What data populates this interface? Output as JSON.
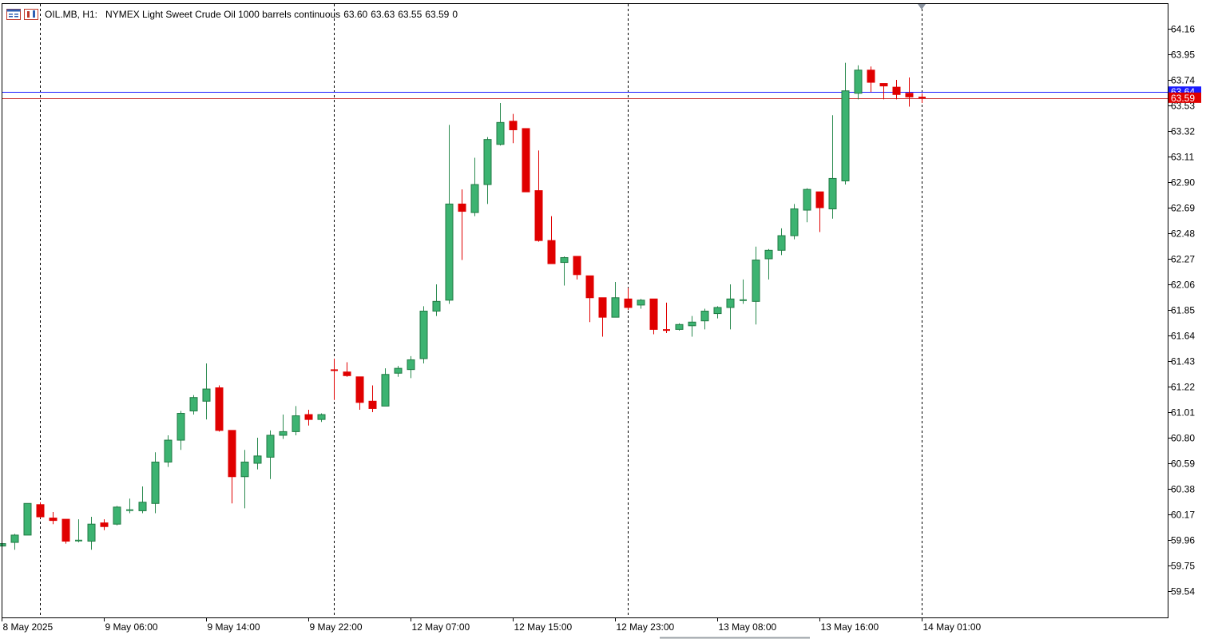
{
  "header": {
    "symbol": "OIL.MB, H1:",
    "description": "NYMEX Light Sweet Crude Oil 1000 barrels continuous",
    "open": "63.60",
    "high": "63.63",
    "low": "63.55",
    "close": "63.59",
    "volume": "0"
  },
  "colors": {
    "bull": "#2e9e5b",
    "bull_fill": "#3cb371",
    "bear": "#e00000",
    "bid_line": "#cc3333",
    "ask_line": "#1a1aff",
    "grid": "#000000",
    "axis": "#000000"
  },
  "price_tags": {
    "bid": "63.59",
    "ask": "63.64"
  },
  "chart_data": {
    "type": "candlestick",
    "timeframe": "H1",
    "ylim": [
      59.4,
      64.28
    ],
    "y_ticks": [
      "64.16",
      "63.95",
      "63.74",
      "63.53",
      "63.32",
      "63.11",
      "62.90",
      "62.69",
      "62.48",
      "62.27",
      "62.06",
      "61.85",
      "61.64",
      "61.43",
      "61.22",
      "61.01",
      "60.80",
      "60.59",
      "60.38",
      "60.17",
      "59.96",
      "59.75",
      "59.54"
    ],
    "x_ticks": [
      "8 May 2025",
      "9 May 06:00",
      "9 May 14:00",
      "9 May 22:00",
      "12 May 07:00",
      "12 May 15:00",
      "12 May 23:00",
      "13 May 08:00",
      "13 May 16:00",
      "14 May 01:00"
    ],
    "x_tick_bars": [
      0,
      8,
      16,
      24,
      32,
      40,
      48,
      56,
      64,
      72
    ],
    "session_separator_bars": [
      3,
      26,
      49,
      72
    ],
    "bid": 63.59,
    "ask": 63.64,
    "candles": [
      {
        "o": 59.91,
        "h": 59.94,
        "l": 59.89,
        "c": 59.93
      },
      {
        "o": 59.94,
        "h": 60.01,
        "l": 59.88,
        "c": 60.0
      },
      {
        "o": 60.0,
        "h": 60.26,
        "l": 60.0,
        "c": 60.26
      },
      {
        "o": 60.25,
        "h": 60.27,
        "l": 60.14,
        "c": 60.15
      },
      {
        "o": 60.14,
        "h": 60.19,
        "l": 60.09,
        "c": 60.12
      },
      {
        "o": 60.13,
        "h": 60.13,
        "l": 59.93,
        "c": 59.95
      },
      {
        "o": 59.95,
        "h": 60.13,
        "l": 59.94,
        "c": 59.96
      },
      {
        "o": 59.95,
        "h": 60.15,
        "l": 59.88,
        "c": 60.09
      },
      {
        "o": 60.1,
        "h": 60.13,
        "l": 60.04,
        "c": 60.07
      },
      {
        "o": 60.09,
        "h": 60.24,
        "l": 60.08,
        "c": 60.23
      },
      {
        "o": 60.2,
        "h": 60.3,
        "l": 60.18,
        "c": 60.21
      },
      {
        "o": 60.2,
        "h": 60.4,
        "l": 60.18,
        "c": 60.27
      },
      {
        "o": 60.26,
        "h": 60.68,
        "l": 60.18,
        "c": 60.6
      },
      {
        "o": 60.6,
        "h": 60.82,
        "l": 60.56,
        "c": 60.78
      },
      {
        "o": 60.78,
        "h": 61.02,
        "l": 60.7,
        "c": 61.0
      },
      {
        "o": 61.02,
        "h": 61.15,
        "l": 60.99,
        "c": 61.13
      },
      {
        "o": 61.1,
        "h": 61.41,
        "l": 60.95,
        "c": 61.2
      },
      {
        "o": 61.21,
        "h": 61.23,
        "l": 60.85,
        "c": 60.86
      },
      {
        "o": 60.86,
        "h": 60.86,
        "l": 60.26,
        "c": 60.48
      },
      {
        "o": 60.48,
        "h": 60.7,
        "l": 60.22,
        "c": 60.6
      },
      {
        "o": 60.59,
        "h": 60.8,
        "l": 60.54,
        "c": 60.65
      },
      {
        "o": 60.64,
        "h": 60.86,
        "l": 60.46,
        "c": 60.82
      },
      {
        "o": 60.82,
        "h": 60.99,
        "l": 60.79,
        "c": 60.85
      },
      {
        "o": 60.85,
        "h": 61.06,
        "l": 60.82,
        "c": 60.98
      },
      {
        "o": 60.99,
        "h": 61.03,
        "l": 60.9,
        "c": 60.95
      },
      {
        "o": 60.95,
        "h": 61.0,
        "l": 60.93,
        "c": 60.99
      },
      {
        "o": 61.36,
        "h": 61.45,
        "l": 61.11,
        "c": 61.35
      },
      {
        "o": 61.34,
        "h": 61.42,
        "l": 61.3,
        "c": 61.31
      },
      {
        "o": 61.3,
        "h": 61.3,
        "l": 61.03,
        "c": 61.09
      },
      {
        "o": 61.1,
        "h": 61.23,
        "l": 61.01,
        "c": 61.04
      },
      {
        "o": 61.06,
        "h": 61.37,
        "l": 61.06,
        "c": 61.32
      },
      {
        "o": 61.33,
        "h": 61.39,
        "l": 61.3,
        "c": 61.37
      },
      {
        "o": 61.36,
        "h": 61.47,
        "l": 61.29,
        "c": 61.44
      },
      {
        "o": 61.45,
        "h": 61.88,
        "l": 61.41,
        "c": 61.84
      },
      {
        "o": 61.84,
        "h": 62.06,
        "l": 61.8,
        "c": 61.92
      },
      {
        "o": 61.93,
        "h": 63.37,
        "l": 61.9,
        "c": 62.72
      },
      {
        "o": 62.72,
        "h": 62.84,
        "l": 62.26,
        "c": 62.66
      },
      {
        "o": 62.65,
        "h": 63.1,
        "l": 62.62,
        "c": 62.88
      },
      {
        "o": 62.88,
        "h": 63.27,
        "l": 62.72,
        "c": 63.25
      },
      {
        "o": 63.21,
        "h": 63.55,
        "l": 63.2,
        "c": 63.39
      },
      {
        "o": 63.4,
        "h": 63.46,
        "l": 63.22,
        "c": 63.33
      },
      {
        "o": 63.34,
        "h": 63.34,
        "l": 62.82,
        "c": 62.82
      },
      {
        "o": 62.83,
        "h": 63.16,
        "l": 62.41,
        "c": 62.42
      },
      {
        "o": 62.42,
        "h": 62.62,
        "l": 62.23,
        "c": 62.23
      },
      {
        "o": 62.24,
        "h": 62.29,
        "l": 62.05,
        "c": 62.28
      },
      {
        "o": 62.29,
        "h": 62.29,
        "l": 62.1,
        "c": 62.14
      },
      {
        "o": 62.13,
        "h": 62.13,
        "l": 61.75,
        "c": 61.95
      },
      {
        "o": 61.95,
        "h": 61.95,
        "l": 61.63,
        "c": 61.79
      },
      {
        "o": 61.79,
        "h": 62.08,
        "l": 61.79,
        "c": 61.95
      },
      {
        "o": 61.94,
        "h": 62.03,
        "l": 61.85,
        "c": 61.87
      },
      {
        "o": 61.89,
        "h": 61.94,
        "l": 61.86,
        "c": 61.93
      },
      {
        "o": 61.94,
        "h": 61.94,
        "l": 61.65,
        "c": 61.69
      },
      {
        "o": 61.69,
        "h": 61.91,
        "l": 61.66,
        "c": 61.68
      },
      {
        "o": 61.69,
        "h": 61.74,
        "l": 61.68,
        "c": 61.73
      },
      {
        "o": 61.72,
        "h": 61.8,
        "l": 61.63,
        "c": 61.75
      },
      {
        "o": 61.76,
        "h": 61.86,
        "l": 61.69,
        "c": 61.84
      },
      {
        "o": 61.82,
        "h": 61.88,
        "l": 61.78,
        "c": 61.87
      },
      {
        "o": 61.87,
        "h": 62.06,
        "l": 61.69,
        "c": 61.94
      },
      {
        "o": 61.93,
        "h": 62.1,
        "l": 61.9,
        "c": 61.93
      },
      {
        "o": 61.92,
        "h": 62.37,
        "l": 61.73,
        "c": 62.26
      },
      {
        "o": 62.27,
        "h": 62.35,
        "l": 62.1,
        "c": 62.34
      },
      {
        "o": 62.34,
        "h": 62.52,
        "l": 62.3,
        "c": 62.46
      },
      {
        "o": 62.46,
        "h": 62.72,
        "l": 62.43,
        "c": 62.68
      },
      {
        "o": 62.67,
        "h": 62.85,
        "l": 62.57,
        "c": 62.84
      },
      {
        "o": 62.82,
        "h": 62.82,
        "l": 62.49,
        "c": 62.69
      },
      {
        "o": 62.68,
        "h": 63.45,
        "l": 62.6,
        "c": 62.93
      },
      {
        "o": 62.91,
        "h": 63.88,
        "l": 62.88,
        "c": 63.65
      },
      {
        "o": 63.63,
        "h": 63.86,
        "l": 63.58,
        "c": 63.82
      },
      {
        "o": 63.82,
        "h": 63.85,
        "l": 63.64,
        "c": 63.72
      },
      {
        "o": 63.71,
        "h": 63.71,
        "l": 63.58,
        "c": 63.69
      },
      {
        "o": 63.68,
        "h": 63.74,
        "l": 63.58,
        "c": 63.62
      },
      {
        "o": 63.63,
        "h": 63.76,
        "l": 63.52,
        "c": 63.6
      },
      {
        "o": 63.6,
        "h": 63.63,
        "l": 63.55,
        "c": 63.59
      }
    ]
  }
}
